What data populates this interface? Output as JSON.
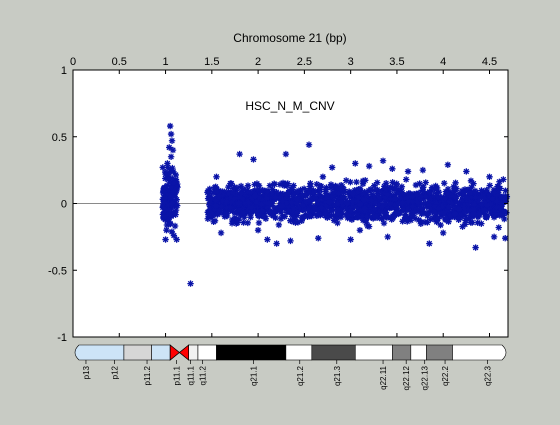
{
  "chart_data": {
    "type": "scatter",
    "title": "Chromosome 21 (bp)",
    "annotation": "HSC_N_M_CNV",
    "xlabel": "Chromosome 21 (bp)",
    "ylabel": "",
    "x_axis_position": "top",
    "xlim": [
      0,
      4.7
    ],
    "ylim": [
      -1,
      1
    ],
    "x_ticks": [
      0,
      0.5,
      1,
      1.5,
      2,
      2.5,
      3,
      3.5,
      4,
      4.5
    ],
    "x_tick_labels": [
      "0",
      "0.5",
      "1",
      "1.5",
      "2",
      "2.5",
      "3",
      "3.5",
      "4",
      "4.5"
    ],
    "y_ticks": [
      1,
      0.5,
      0,
      -0.5,
      -1
    ],
    "y_tick_labels": [
      "1",
      "0.5",
      "0",
      "-0.5",
      "-1"
    ],
    "zero_line": true,
    "grid": false,
    "legend": "none",
    "marker": "asterisk",
    "series": [
      {
        "color": "#0a14a8",
        "points": [
          [
            1.05,
            0.58
          ],
          [
            1.06,
            0.52
          ],
          [
            1.07,
            0.47
          ],
          [
            1.04,
            0.42
          ],
          [
            1.08,
            0.4
          ],
          [
            1.0,
            0.22
          ],
          [
            0.97,
            0.27
          ],
          [
            1.09,
            0.15
          ],
          [
            1.03,
            0.18
          ],
          [
            0.99,
            0.12
          ],
          [
            1.02,
            0.3
          ],
          [
            1.06,
            0.35
          ],
          [
            1.1,
            0.05
          ],
          [
            1.07,
            0.0
          ],
          [
            0.98,
            -0.1
          ],
          [
            1.01,
            -0.2
          ],
          [
            1.0,
            -0.27
          ],
          [
            1.12,
            -0.27
          ],
          [
            1.05,
            -0.15
          ],
          [
            1.09,
            -0.24
          ],
          [
            1.03,
            -0.05
          ],
          [
            0.99,
            0.04
          ],
          [
            1.11,
            0.1
          ],
          [
            1.04,
            -0.08
          ],
          [
            1.27,
            -0.6
          ],
          [
            1.55,
            0.2
          ],
          [
            1.8,
            0.37
          ],
          [
            1.95,
            0.33
          ],
          [
            2.3,
            0.37
          ],
          [
            2.55,
            0.44
          ],
          [
            2.8,
            0.27
          ],
          [
            3.05,
            0.3
          ],
          [
            3.2,
            0.28
          ],
          [
            3.35,
            0.32
          ],
          [
            3.45,
            0.26
          ],
          [
            3.62,
            0.24
          ],
          [
            3.78,
            0.25
          ],
          [
            4.05,
            0.29
          ],
          [
            4.25,
            0.24
          ],
          [
            4.5,
            0.2
          ],
          [
            4.65,
            0.18
          ],
          [
            1.6,
            -0.22
          ],
          [
            2.1,
            -0.27
          ],
          [
            2.2,
            -0.3
          ],
          [
            2.35,
            -0.28
          ],
          [
            2.65,
            -0.26
          ],
          [
            3.0,
            -0.27
          ],
          [
            3.4,
            -0.25
          ],
          [
            3.85,
            -0.3
          ],
          [
            4.35,
            -0.33
          ],
          [
            4.55,
            -0.25
          ],
          [
            4.67,
            -0.26
          ],
          [
            1.7,
            0.15
          ],
          [
            2.0,
            -0.2
          ],
          [
            2.7,
            0.2
          ],
          [
            3.1,
            -0.2
          ],
          [
            3.6,
            0.18
          ],
          [
            4.0,
            -0.22
          ],
          [
            4.3,
            0.17
          ],
          [
            4.6,
            -0.18
          ]
        ],
        "dense_band": [
          {
            "x_range": [
              1.45,
              4.69
            ],
            "y_range": [
              -0.2,
              0.2
            ],
            "count": 1600
          },
          {
            "x_range": [
              0.97,
              1.13
            ],
            "y_range": [
              -0.25,
              0.35
            ],
            "count": 120
          }
        ]
      }
    ],
    "ideogram": {
      "bands": [
        {
          "start": 0,
          "end": 0.55,
          "color": "#cde4f7"
        },
        {
          "start": 0.55,
          "end": 0.85,
          "color": "#d6d6d6"
        },
        {
          "start": 0.85,
          "end": 1.05,
          "color": "#cde4f7"
        },
        {
          "start": 1.05,
          "end": 1.25,
          "color": "#ff0000",
          "centromere": true
        },
        {
          "start": 1.25,
          "end": 1.35,
          "color": "#f2f2f2"
        },
        {
          "start": 1.35,
          "end": 1.55,
          "color": "#ffffff"
        },
        {
          "start": 1.55,
          "end": 2.3,
          "color": "#000000"
        },
        {
          "start": 2.3,
          "end": 2.58,
          "color": "#ffffff"
        },
        {
          "start": 2.58,
          "end": 3.05,
          "color": "#4a4a4a"
        },
        {
          "start": 3.05,
          "end": 3.45,
          "color": "#ffffff"
        },
        {
          "start": 3.45,
          "end": 3.65,
          "color": "#808080"
        },
        {
          "start": 3.65,
          "end": 3.82,
          "color": "#ffffff"
        },
        {
          "start": 3.82,
          "end": 4.1,
          "color": "#808080"
        },
        {
          "start": 4.1,
          "end": 4.7,
          "color": "#ffffff"
        }
      ],
      "labels": [
        {
          "text": "p13",
          "pos": 0.14
        },
        {
          "text": "p12",
          "pos": 0.45
        },
        {
          "text": "p11.2",
          "pos": 0.8
        },
        {
          "text": "p11.1",
          "pos": 1.12
        },
        {
          "text": "q11.1",
          "pos": 1.27
        },
        {
          "text": "q11.2",
          "pos": 1.4
        },
        {
          "text": "q21.1",
          "pos": 1.95
        },
        {
          "text": "q21.2",
          "pos": 2.45
        },
        {
          "text": "q21.3",
          "pos": 2.85
        },
        {
          "text": "q22.11",
          "pos": 3.35
        },
        {
          "text": "q22.12",
          "pos": 3.6
        },
        {
          "text": "q22.13",
          "pos": 3.8
        },
        {
          "text": "q22.2",
          "pos": 4.02
        },
        {
          "text": "q22.3",
          "pos": 4.48
        }
      ]
    }
  }
}
